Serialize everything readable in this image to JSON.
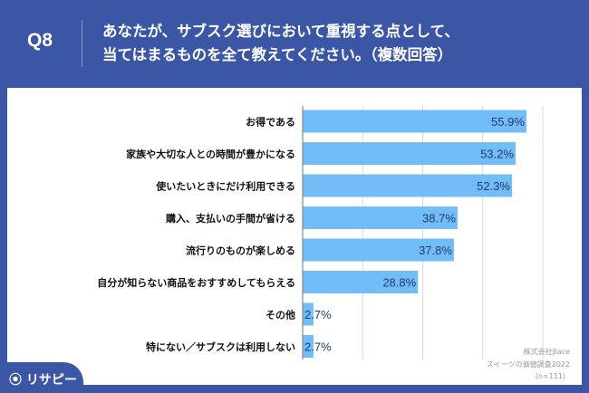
{
  "header": {
    "question": "Q8",
    "title_line1": "あなたが、サブスク選びにおいて重視する点として、",
    "title_line2": "当てはまるものを全て教えてください。（複数回答）"
  },
  "logo": "リサピー",
  "footer": {
    "company": "株式会社βace",
    "survey": "スイーツの価値調査2022",
    "sample": "(n=111)"
  },
  "colors": {
    "bar": "#72BDF7",
    "header": "#3B56A5",
    "label": "#1E3A6E"
  },
  "chart_data": {
    "type": "bar",
    "orientation": "horizontal",
    "categories": [
      "お得である",
      "家族や大切な人との時間が豊かになる",
      "使いたいときにだけ利用できる",
      "購入、支払いの手間が省ける",
      "流行りのものが楽しめる",
      "自分が知らない商品をおすすめしてもらえる",
      "その他",
      "特にない／サブスクは利用しない"
    ],
    "values": [
      55.9,
      53.2,
      52.3,
      38.7,
      37.8,
      28.8,
      2.7,
      2.7
    ],
    "value_labels": [
      "55.9%",
      "53.2%",
      "52.3%",
      "38.7%",
      "37.8%",
      "28.8%",
      "2.7%",
      "2.7%"
    ],
    "xlim": [
      0,
      60
    ],
    "gridlines": [
      15,
      30,
      45,
      60
    ],
    "grid": true
  }
}
